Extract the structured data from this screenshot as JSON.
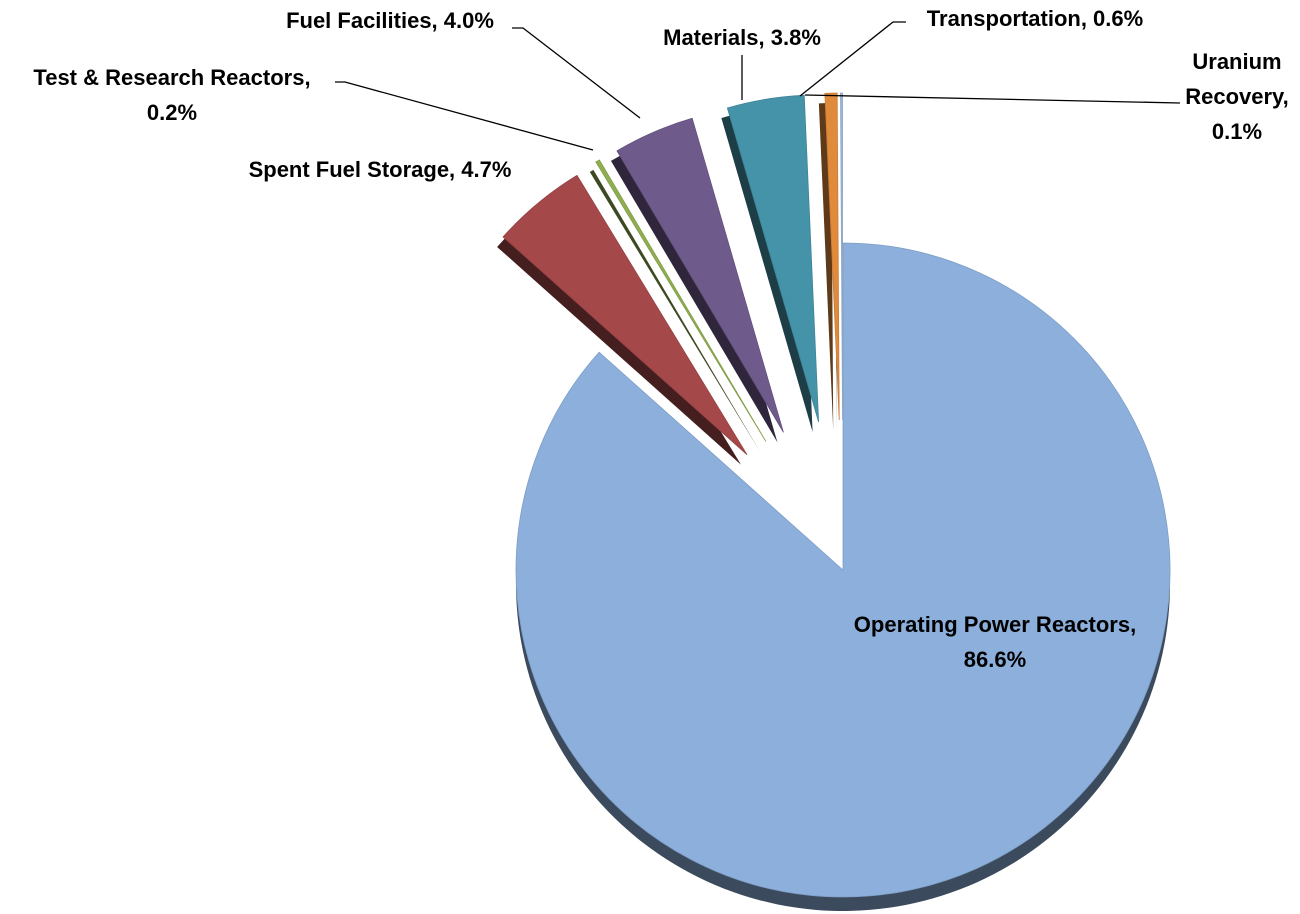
{
  "chart_data": {
    "type": "pie",
    "categories": [
      "Operating Power Reactors",
      "Spent Fuel Storage",
      "Test & Research Reactors",
      "Fuel Facilities",
      "Materials",
      "Transportation",
      "Uranium Recovery"
    ],
    "values": [
      86.6,
      4.7,
      0.2,
      4.0,
      3.8,
      0.6,
      0.1
    ],
    "value_labels": [
      "Operating Power Reactors, 86.6%",
      "Spent Fuel Storage, 4.7%",
      "Test & Research Reactors, 0.2%",
      "Fuel Facilities, 4.0%",
      "Materials, 3.8%",
      "Transportation, 0.6%",
      "Uranium Recovery, 0.1%"
    ],
    "colors": [
      "#8cafdc",
      "#a5484a",
      "#8fae50",
      "#6f5a8c",
      "#4593a8",
      "#e08a3c",
      "#9db7d9"
    ],
    "exploded": [
      false,
      true,
      true,
      true,
      true,
      true,
      true
    ]
  }
}
